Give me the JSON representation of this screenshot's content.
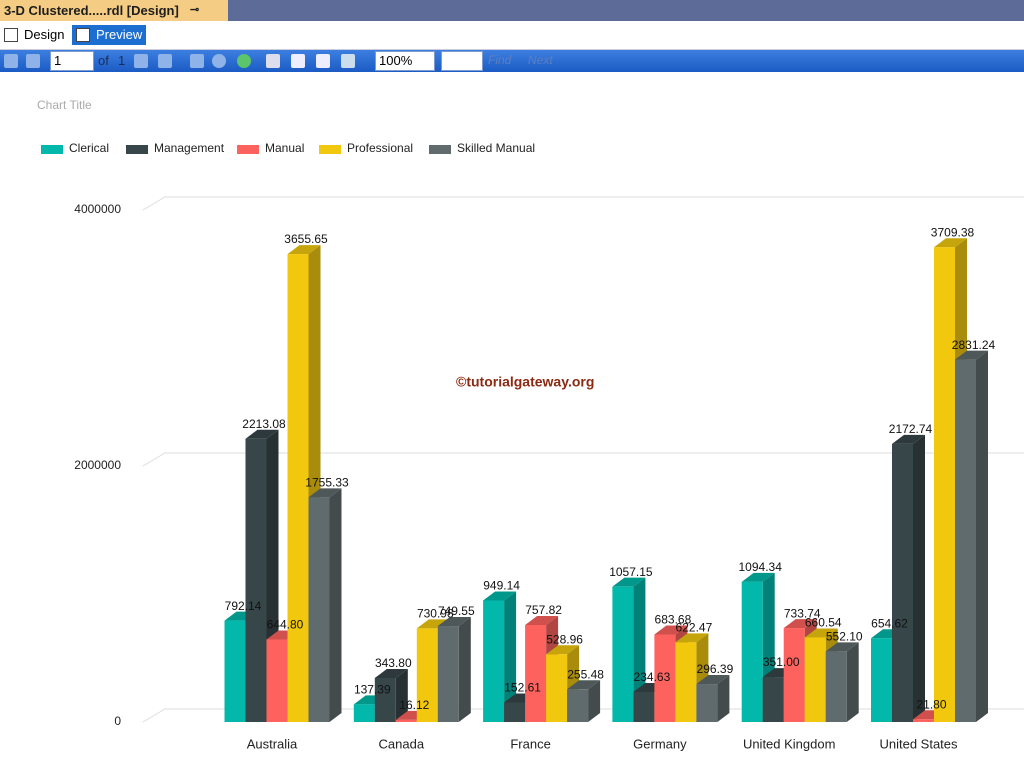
{
  "ui": {
    "tab_title": "3-D Clustered.....rdl [Design]",
    "design_button": "Design",
    "preview_button": "Preview",
    "page_number": "1",
    "page_of": "of",
    "page_count": "1",
    "zoom": "100%",
    "find": "Find",
    "next": "Next"
  },
  "chart_data": {
    "type": "bar3d",
    "title": "Chart Title",
    "annotation": "©tutorialgateway.org",
    "categories": [
      "Australia",
      "Canada",
      "France",
      "Germany",
      "United Kingdom",
      "United States"
    ],
    "series": [
      {
        "name": "Clerical",
        "color": "#01B8AA",
        "values": [
          792140,
          137390,
          949140,
          1057150,
          1094340,
          654620
        ],
        "value_labels": [
          "792.14",
          "137.39",
          "949.14",
          "1057.15",
          "1094.34",
          "654.62"
        ]
      },
      {
        "name": "Management",
        "color": "#374649",
        "values": [
          2213080,
          343800,
          152610,
          234630,
          351000,
          2172740
        ],
        "value_labels": [
          "2213.08",
          "343.80",
          "152.61",
          "234.63",
          "351.00",
          "2172.74"
        ]
      },
      {
        "name": "Manual",
        "color": "#FD625E",
        "values": [
          644800,
          16120,
          757820,
          683680,
          733740,
          21800
        ],
        "value_labels": [
          "644.80",
          "16.12",
          "757.82",
          "683.68",
          "733.74",
          "21.80"
        ]
      },
      {
        "name": "Professional",
        "color": "#F2C80F",
        "values": [
          3655650,
          730980,
          528960,
          622470,
          660540,
          3709380
        ],
        "value_labels": [
          "3655.65",
          "730.98",
          "528.96",
          "622.47",
          "660.54",
          "3709.38"
        ]
      },
      {
        "name": "Skilled Manual",
        "color": "#5F6B6D",
        "values": [
          1755330,
          749550,
          255480,
          296390,
          552100,
          2831240
        ],
        "value_labels": [
          "1755.33",
          "749.55",
          "255.48",
          "296.39",
          "552.10",
          "2831.24"
        ]
      }
    ],
    "ylim": [
      0,
      4000000
    ],
    "yticks": [
      0,
      2000000,
      4000000
    ],
    "grid": true,
    "legend": "top-left"
  }
}
